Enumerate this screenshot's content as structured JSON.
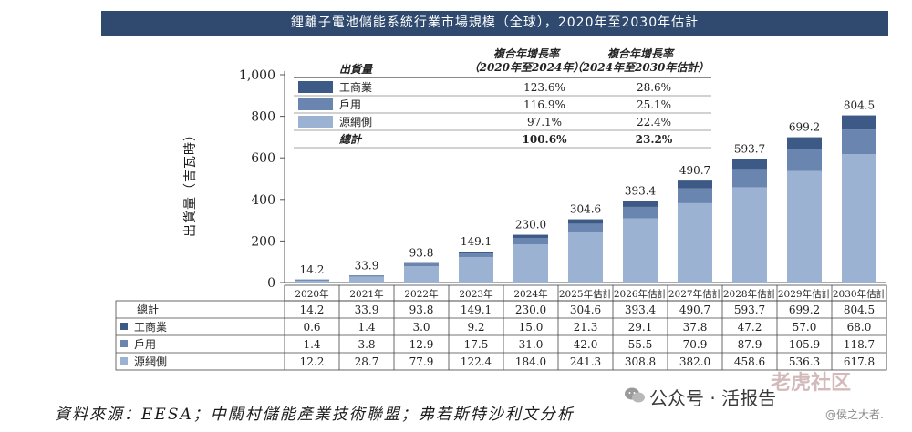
{
  "title": "鋰離子電池儲能系統行業市場規模（全球），2020年至2030年估計",
  "source": "資料來源：EESA；中關村儲能產業技術聯盟；弗若斯特沙利文分析",
  "watermark": {
    "platform": "公众号 · 活报告",
    "logo": "老虎社区",
    "author": "@侯之大者."
  },
  "chart_data": {
    "type": "bar",
    "stacked": true,
    "title": "鋰離子電池儲能系統行業市場規模（全球），2020年至2030年估計",
    "ylabel": "出貨量（吉瓦時）",
    "ylim": [
      0,
      1000
    ],
    "yticks": [
      "0",
      "200",
      "400",
      "600",
      "800",
      "1,000"
    ],
    "ytick_values": [
      0,
      200,
      400,
      600,
      800,
      1000
    ],
    "categories": [
      "2020年",
      "2021年",
      "2022年",
      "2023年",
      "2024年",
      "2025年估計",
      "2026年估計",
      "2027年估計",
      "2028年估計",
      "2029年估計",
      "2030年估計"
    ],
    "totals": [
      14.2,
      33.9,
      93.8,
      149.1,
      230.0,
      304.6,
      393.4,
      490.7,
      593.7,
      699.2,
      804.5
    ],
    "total_labels": [
      "14.2",
      "33.9",
      "93.8",
      "149.1",
      "230.0",
      "304.6",
      "393.4",
      "490.7",
      "593.7",
      "699.2",
      "804.5"
    ],
    "series": [
      {
        "name": "源網側",
        "color": "#9bb2d2",
        "values": [
          12.2,
          28.7,
          77.9,
          122.4,
          184.0,
          241.3,
          308.8,
          382.0,
          458.6,
          536.3,
          617.8
        ]
      },
      {
        "name": "戶用",
        "color": "#6a86b0",
        "values": [
          1.4,
          3.8,
          12.9,
          17.5,
          31.0,
          42.0,
          55.5,
          70.9,
          87.9,
          105.9,
          118.7
        ]
      },
      {
        "name": "工商業",
        "color": "#3d5a86",
        "values": [
          0.6,
          1.4,
          3.0,
          9.2,
          15.0,
          21.3,
          29.1,
          37.8,
          47.2,
          57.0,
          68.0
        ]
      }
    ],
    "table": {
      "row_total_label": "總計",
      "rows": [
        {
          "name": "總計",
          "values": [
            "14.2",
            "33.9",
            "93.8",
            "149.1",
            "230.0",
            "304.6",
            "393.4",
            "490.7",
            "593.7",
            "699.2",
            "804.5"
          ]
        },
        {
          "name": "工商業",
          "color": "#3d5a86",
          "values": [
            "0.6",
            "1.4",
            "3.0",
            "9.2",
            "15.0",
            "21.3",
            "29.1",
            "37.8",
            "47.2",
            "57.0",
            "68.0"
          ]
        },
        {
          "name": "戶用",
          "color": "#6a86b0",
          "values": [
            "1.4",
            "3.8",
            "12.9",
            "17.5",
            "31.0",
            "42.0",
            "55.5",
            "70.9",
            "87.9",
            "105.9",
            "118.7"
          ]
        },
        {
          "name": "源網側",
          "color": "#9bb2d2",
          "values": [
            "12.2",
            "28.7",
            "77.9",
            "122.4",
            "184.0",
            "241.3",
            "308.8",
            "382.0",
            "458.6",
            "536.3",
            "617.8"
          ]
        }
      ]
    },
    "legend": {
      "header": "出貨量",
      "cagr_header_1": [
        "複合年增長率",
        "（2020年至2024年）"
      ],
      "cagr_header_2": [
        "複合年增長率",
        "（2024年至2030年估計）"
      ],
      "rows": [
        {
          "name": "工商業",
          "color": "#3d5a86",
          "cagr1": "123.6%",
          "cagr2": "28.6%"
        },
        {
          "name": "戶用",
          "color": "#6a86b0",
          "cagr1": "116.9%",
          "cagr2": "25.1%"
        },
        {
          "name": "源網側",
          "color": "#9bb2d2",
          "cagr1": "97.1%",
          "cagr2": "22.4%"
        },
        {
          "name": "總計",
          "color": "",
          "cagr1": "100.6%",
          "cagr2": "23.2%",
          "bold": true
        }
      ]
    }
  }
}
